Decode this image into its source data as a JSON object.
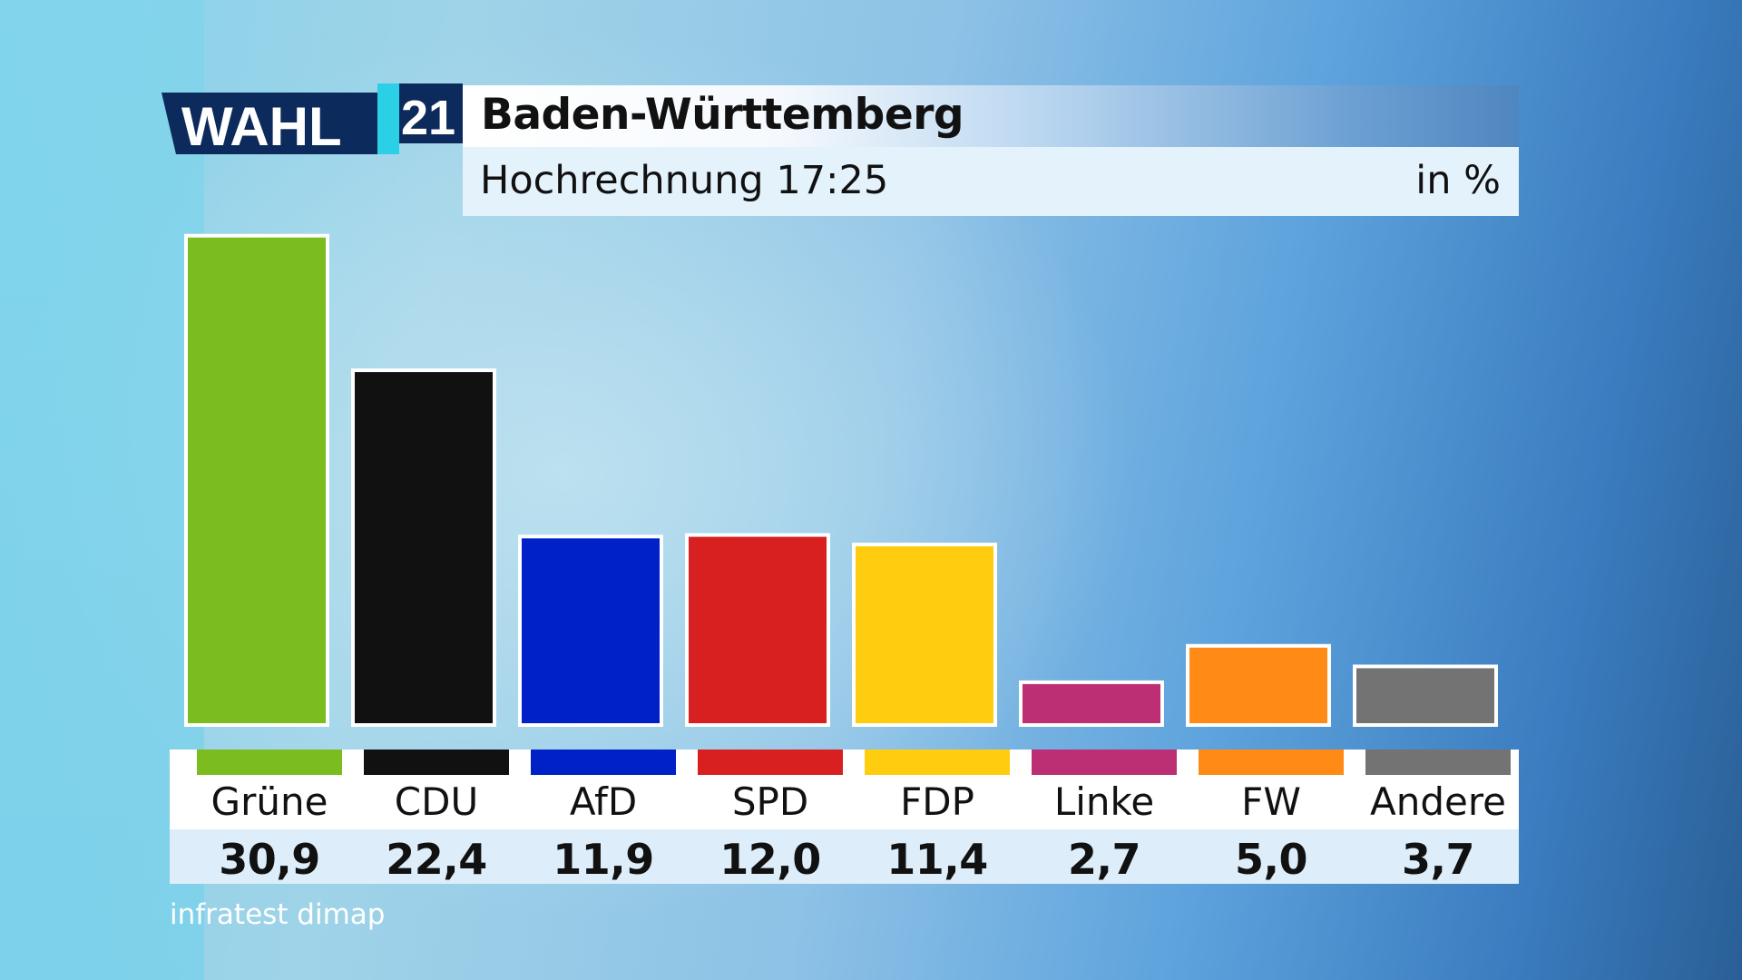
{
  "header": {
    "logo_word": "WAHL",
    "logo_year": "21",
    "title": "Baden-Württemberg",
    "subtitle": "Hochrechnung 17:25",
    "unit": "in %"
  },
  "source": "infratest dimap",
  "chart_data": {
    "type": "bar",
    "categories": [
      "Grüne",
      "CDU",
      "AfD",
      "SPD",
      "FDP",
      "Linke",
      "FW",
      "Andere"
    ],
    "values": [
      30.9,
      22.4,
      11.9,
      12.0,
      11.4,
      2.7,
      5.0,
      3.7
    ],
    "value_labels": [
      "30,9",
      "22,4",
      "11,9",
      "12,0",
      "11,4",
      "2,7",
      "5,0",
      "3,7"
    ],
    "colors": [
      "#7bbd1e",
      "#111111",
      "#0021c8",
      "#d92020",
      "#ffcd10",
      "#bc2f74",
      "#ff8a16",
      "#737373"
    ],
    "title": "Baden-Württemberg",
    "subtitle": "Hochrechnung 17:25",
    "ylabel": "in %",
    "ylim": [
      0,
      31
    ],
    "grid": false,
    "legend": "none"
  }
}
